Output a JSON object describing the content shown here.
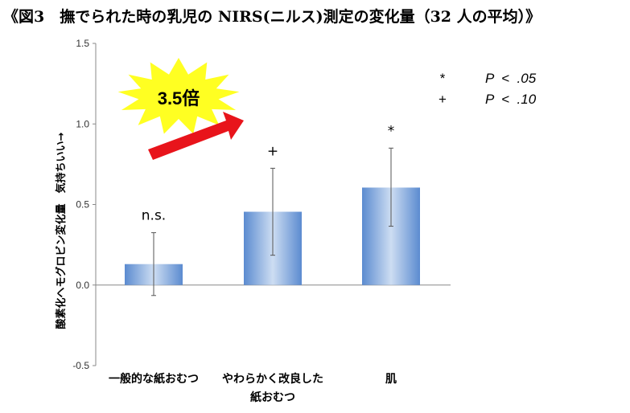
{
  "title": "《図3　撫でられた時の乳児の NIRS(ニルス)測定の変化量（32 人の平均）》",
  "callout": {
    "text": "3.5倍"
  },
  "legend": [
    {
      "symbol": "*",
      "text": "P  <  .05"
    },
    {
      "symbol": "+",
      "text": "P  <  .10"
    }
  ],
  "colors": {
    "bar_light": "#cdddf2",
    "bar_dark": "#5b8bd0",
    "burst": "#ffff22",
    "arrow": "#e8141b",
    "axis": "#888888"
  },
  "chart_data": {
    "type": "bar",
    "ylabel": "酸素化ヘモグロビン変化量　気持ちいい→",
    "ylim": [
      -0.5,
      1.5
    ],
    "yticks": [
      "-0.5",
      "0.0",
      "0.5",
      "1.0",
      "1.5"
    ],
    "categories": [
      {
        "lines": [
          "一般的な紙おむつ"
        ]
      },
      {
        "lines": [
          "やわらかく改良した",
          "紙おむつ"
        ]
      },
      {
        "lines": [
          "肌"
        ]
      }
    ],
    "values": [
      0.13,
      0.455,
      0.605
    ],
    "error_high": [
      0.325,
      0.725,
      0.85
    ],
    "error_low": [
      -0.065,
      0.185,
      0.365
    ],
    "labels": [
      "n.s.",
      "+",
      "*"
    ]
  }
}
